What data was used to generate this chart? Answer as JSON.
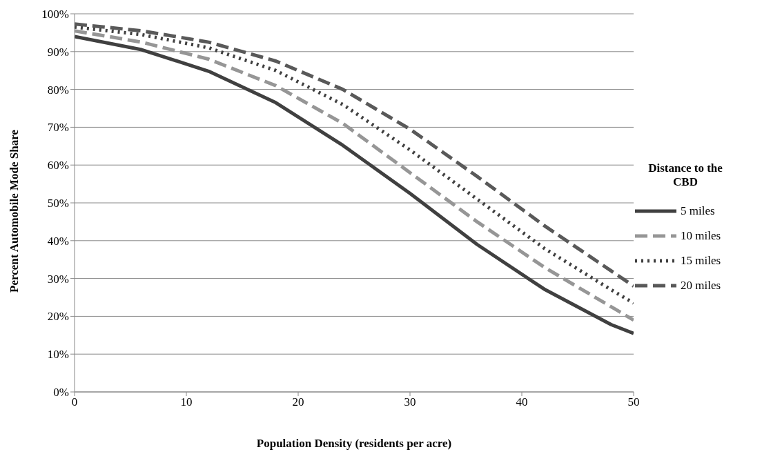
{
  "chart_data": {
    "type": "line",
    "xlabel": "Population Density (residents per acre)",
    "ylabel": "Percent Automobile Mode Share",
    "legend_title": "Distance to the CBD",
    "x": [
      0,
      6,
      12,
      18,
      24,
      30,
      36,
      42,
      48,
      50
    ],
    "series": [
      {
        "name": "5 miles",
        "color": "#404040",
        "line_style": "solid",
        "values": [
          94,
          90.5,
          84.8,
          76.5,
          65.2,
          52.5,
          39,
          27.2,
          17.8,
          15.5
        ]
      },
      {
        "name": "10 miles",
        "color": "#969696",
        "line_style": "dashed",
        "values": [
          95.5,
          92.5,
          88,
          81,
          71,
          58,
          45,
          33,
          22.5,
          19
        ]
      },
      {
        "name": "15 miles",
        "color": "#404040",
        "line_style": "dotted",
        "values": [
          96.5,
          94.5,
          91,
          85,
          76,
          64,
          51,
          38,
          27,
          23.5
        ]
      },
      {
        "name": "20 miles",
        "color": "#595959",
        "line_style": "dashed",
        "values": [
          97.3,
          95.5,
          92.5,
          87.5,
          80,
          69.5,
          57,
          44,
          32,
          28
        ]
      }
    ],
    "xlim": [
      0,
      50
    ],
    "xticks": [
      0,
      10,
      20,
      30,
      40,
      50
    ],
    "ylim": [
      0,
      100
    ],
    "yticks": [
      {
        "value": 0,
        "label": "0%"
      },
      {
        "value": 10,
        "label": "10%"
      },
      {
        "value": 20,
        "label": "20%"
      },
      {
        "value": 30,
        "label": "30%"
      },
      {
        "value": 40,
        "label": "40%"
      },
      {
        "value": 50,
        "label": "50%"
      },
      {
        "value": 60,
        "label": "60%"
      },
      {
        "value": 70,
        "label": "70%"
      },
      {
        "value": 80,
        "label": "80%"
      },
      {
        "value": 90,
        "label": "90%"
      },
      {
        "value": 100,
        "label": "100%"
      }
    ],
    "grid": "y",
    "legend": "right",
    "marker": "none"
  }
}
